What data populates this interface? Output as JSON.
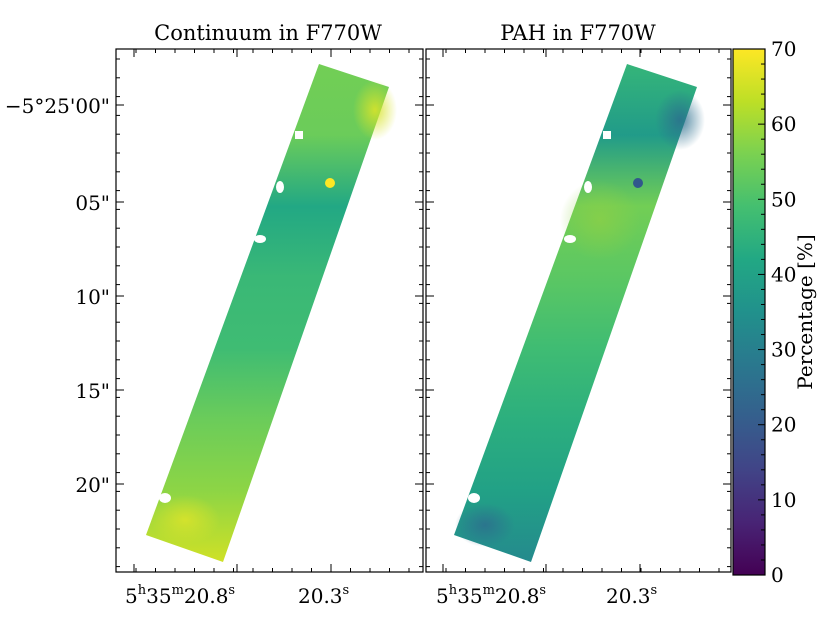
{
  "chart_data": [
    {
      "type": "heatmap",
      "title": "Continuum in F770W",
      "xlabel": "",
      "ylabel": "",
      "x_ticks": [
        {
          "main": "5",
          "sup1": "h",
          "mid": "35",
          "sup2": "m",
          "end": "20.8",
          "sup3": "s"
        },
        {
          "main": "20.3",
          "sup": "s"
        }
      ],
      "y_ticks": [
        "−5°25'00\"",
        "05\"",
        "10\"",
        "15\"",
        "20\""
      ],
      "strip_value_range_percent": [
        48,
        68
      ],
      "strip_gradient_top_to_bottom": [
        55,
        54,
        42,
        47,
        48,
        54,
        58,
        65
      ],
      "features": [
        {
          "label": "bright point source",
          "value_percent": 70
        },
        {
          "label": "masked pixels",
          "value_percent": null
        }
      ]
    },
    {
      "type": "heatmap",
      "title": "PAH in F770W",
      "xlabel": "",
      "ylabel": "",
      "x_ticks": [
        {
          "main": "5",
          "sup1": "h",
          "mid": "35",
          "sup2": "m",
          "end": "20.8",
          "sup3": "s"
        },
        {
          "main": "20.3",
          "sup": "s"
        }
      ],
      "strip_value_range_percent": [
        30,
        55
      ],
      "strip_gradient_top_to_bottom": [
        46,
        38,
        55,
        52,
        48,
        44,
        40,
        33
      ],
      "features": [
        {
          "label": "dark point source",
          "value_percent": 25
        },
        {
          "label": "masked pixels",
          "value_percent": null
        }
      ]
    }
  ],
  "colorbar": {
    "label": "Percentage [%]",
    "colormap": "viridis",
    "min": 0,
    "max": 70,
    "ticks": [
      "0",
      "10",
      "20",
      "30",
      "40",
      "50",
      "60",
      "70"
    ]
  }
}
